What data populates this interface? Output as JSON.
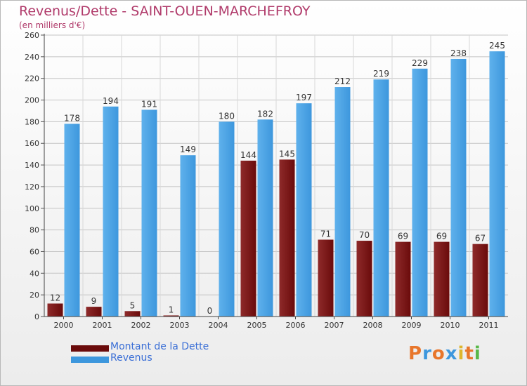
{
  "colors": {
    "debt": "#6a0b0b",
    "revenue": "#3d97dd",
    "title": "#b03a6a",
    "legend_text": "#3b6fd6"
  },
  "chart_data": {
    "type": "bar",
    "title": "Revenus/Dette - SAINT-OUEN-MARCHEFROY",
    "subtitle": "(en milliers d'€)",
    "categories": [
      "2000",
      "2001",
      "2002",
      "2003",
      "2004",
      "2005",
      "2006",
      "2007",
      "2008",
      "2009",
      "2010",
      "2011"
    ],
    "series": [
      {
        "name": "Montant de la Dette",
        "values": [
          12,
          9,
          5,
          1,
          0,
          144,
          145,
          71,
          70,
          69,
          69,
          67
        ]
      },
      {
        "name": "Revenus",
        "values": [
          178,
          194,
          191,
          149,
          180,
          182,
          197,
          212,
          219,
          229,
          238,
          245
        ]
      }
    ],
    "yticks": [
      0,
      20,
      40,
      60,
      80,
      100,
      120,
      140,
      160,
      180,
      200,
      220,
      240,
      260
    ],
    "ylim": [
      0,
      260
    ],
    "grid": true,
    "legend_position": "bottom-left"
  },
  "logo_text": "Proxiti"
}
